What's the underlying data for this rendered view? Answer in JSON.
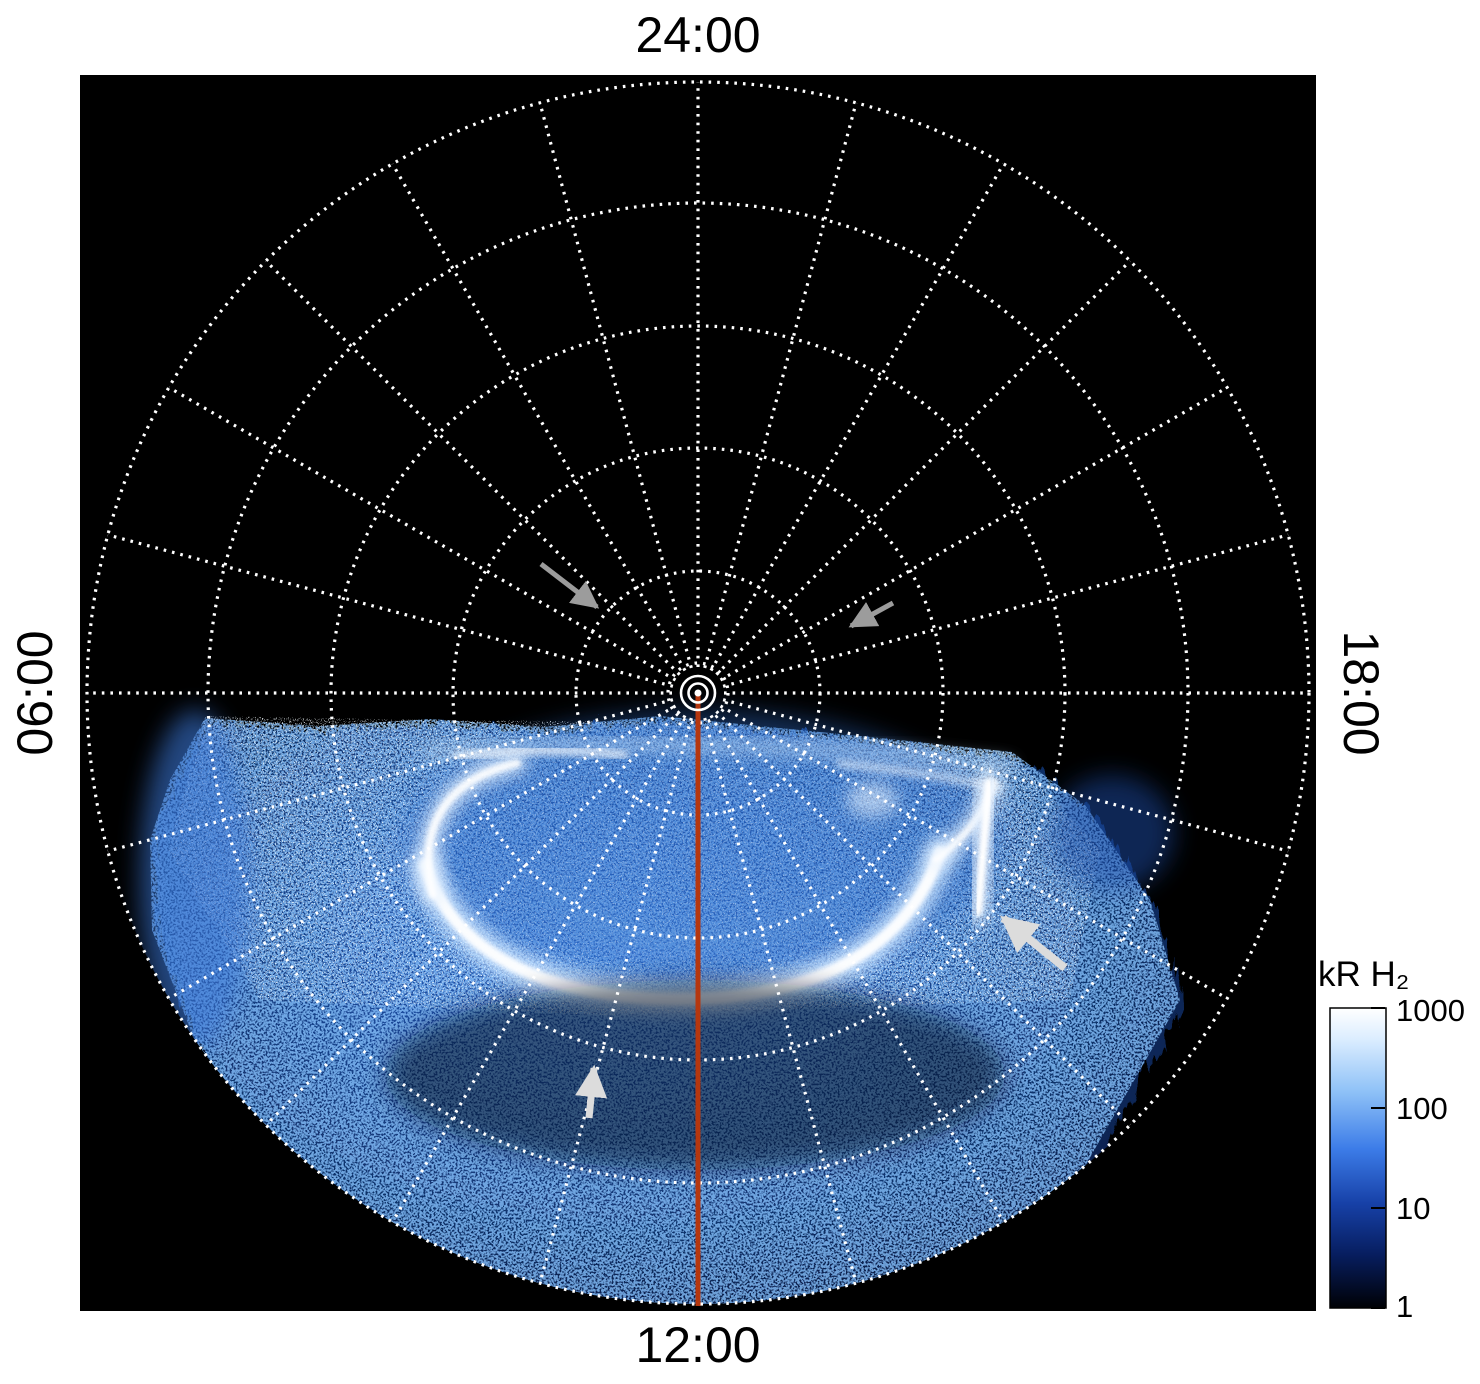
{
  "figure": {
    "page_bg": "#ffffff",
    "plot_bg": "#000000",
    "labels": {
      "top": "24:00",
      "bottom": "12:00",
      "left": "06:00",
      "right": "18:00"
    },
    "colorbar": {
      "title": "kR H₂",
      "ticks": [
        "1000",
        "100",
        "10",
        "1"
      ]
    },
    "colors": {
      "grid": "#ffffff",
      "meridian_line": "#b5370f",
      "arrow_gray": "#9c9c9c",
      "arrow_light": "#dcdcdc",
      "emission_bright": "#ffffff",
      "emission_mid": "#3c7ce8",
      "emission_dark": "#071e60"
    }
  },
  "chart_data": {
    "type": "heatmap",
    "projection": "polar",
    "title": "",
    "description": "Polar projection map of auroral H2 emission brightness plotted versus local time angle and distance from the pole. Midnight (24:00) is at top, dawn (06:00) at left, noon (12:00) at bottom, dusk (18:00) at right. Bright patchy blue/white emission fills the dayside (lower) half of the polar region; the nightside (upper) half is dark with no detected emission.",
    "angular_axis": {
      "units": "local time (hh:mm)",
      "labels": [
        {
          "text": "24:00",
          "position": "top"
        },
        {
          "text": "06:00",
          "position": "left"
        },
        {
          "text": "12:00",
          "position": "bottom"
        },
        {
          "text": "18:00",
          "position": "right"
        }
      ],
      "spoke_spacing_deg": 15,
      "spoke_count": 24,
      "style": "dotted-white"
    },
    "radial_axis": {
      "gridline_circles": 5,
      "inner_bullseye_rings": 3,
      "style": "dotted-white"
    },
    "colorbar": {
      "label": "kR H₂",
      "scale": "log",
      "min": 1,
      "max": 1000,
      "tick_values": [
        1000,
        100,
        10,
        1
      ],
      "colormap": [
        "#000000",
        "#071e60",
        "#1741a8",
        "#3c7ce8",
        "#8ec1f7",
        "#ffffff"
      ],
      "position": "right"
    },
    "annotations": {
      "meridian_line": {
        "color": "#b5370f",
        "from": "pole (center)",
        "to": "12:00 outer edge",
        "meaning": "noon meridian"
      },
      "arrows": [
        {
          "color": "gray",
          "location": "upper-left quadrant",
          "points": "down-right toward inner dotted circle on the pre-midnight/dawn side"
        },
        {
          "color": "gray",
          "location": "upper-right quadrant",
          "points": "down-left toward inner dotted circle on the dusk side"
        },
        {
          "color": "light-gray",
          "location": "right of plot center, lower half",
          "points": "up-left at narrow bright dusk-side emission streak"
        },
        {
          "color": "light-gray",
          "location": "below center near noon meridian",
          "points": "up at diffuse emission equatorward of the main oval"
        }
      ]
    },
    "features": [
      "Main auroral oval: bright white arc at mid radius spanning the dayside sector",
      "Narrow intense quasi-radial bright streak on the dusk side of the oval",
      "Diffuse patchy blue emission extending equatorward toward the outer circle across the dayside",
      "Sharp emission cutoff along the dawn-dusk line through the pole (upper half dark)",
      "Brightness spans roughly 1 to 1000 kR on a logarithmic color scale"
    ]
  }
}
